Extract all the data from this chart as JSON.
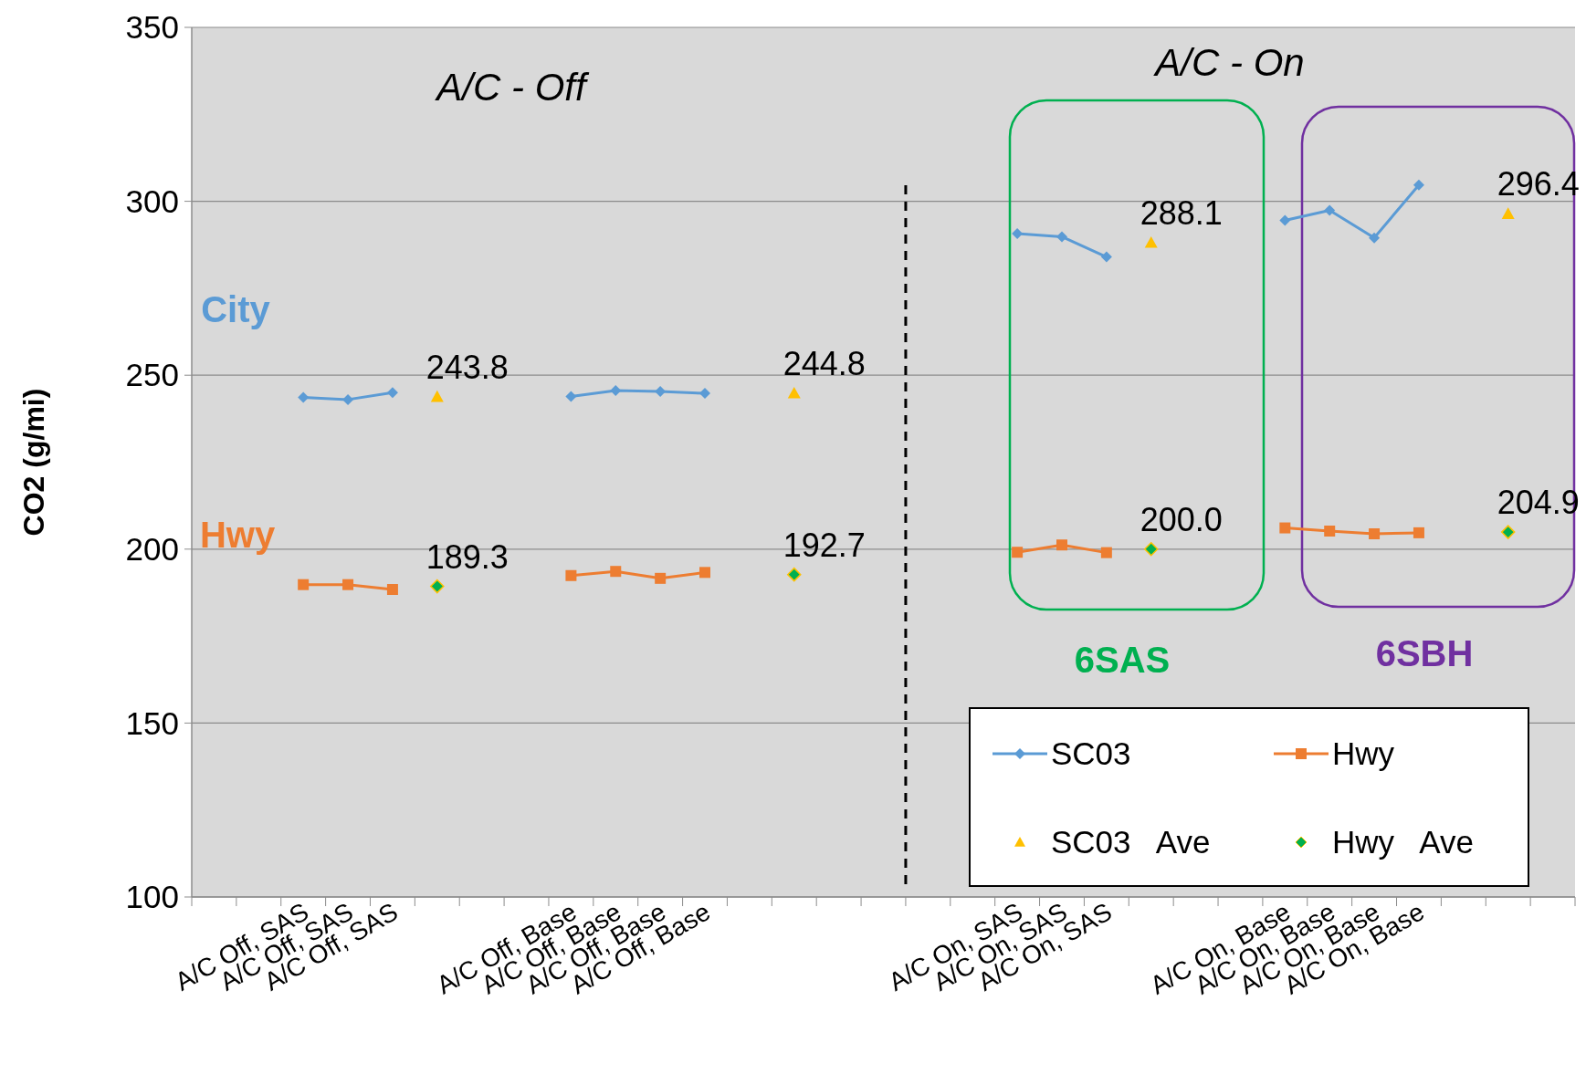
{
  "chart_data": {
    "type": "line",
    "ylabel": "CO2 (g/mi)",
    "categories": [
      null,
      null,
      "A/C Off, SAS",
      "A/C Off, SAS",
      "A/C Off, SAS",
      null,
      null,
      null,
      "A/C Off, Base",
      "A/C Off, Base",
      "A/C Off, Base",
      "A/C Off, Base",
      null,
      null,
      null,
      null,
      null,
      null,
      "A/C On, SAS",
      "A/C On, SAS",
      "A/C On, SAS",
      null,
      null,
      null,
      "A/C On, Base",
      "A/C On, Base",
      "A/C On, Base",
      "A/C On, Base",
      null,
      null,
      null
    ],
    "series": [
      {
        "name": "SC03",
        "color": "#5b9bd5",
        "marker": "diamond",
        "values": [
          null,
          null,
          243.6,
          243.0,
          245.0,
          null,
          null,
          null,
          243.9,
          245.6,
          245.3,
          244.8,
          null,
          null,
          null,
          null,
          null,
          null,
          290.7,
          289.8,
          284.0,
          null,
          null,
          null,
          294.5,
          297.4,
          289.5,
          304.7,
          null,
          null,
          null
        ]
      },
      {
        "name": "Hwy",
        "color": "#ed7d31",
        "marker": "square",
        "values": [
          null,
          null,
          189.8,
          189.8,
          188.4,
          null,
          null,
          null,
          192.4,
          193.6,
          191.6,
          193.3,
          null,
          null,
          null,
          null,
          null,
          null,
          199.1,
          201.2,
          199.0,
          null,
          null,
          null,
          206.1,
          205.2,
          204.4,
          204.7,
          null,
          null,
          null
        ]
      },
      {
        "name": "SC03   Ave",
        "type": "scatter",
        "color": "#ffc000",
        "marker": "triangle",
        "values": [
          null,
          null,
          null,
          null,
          null,
          243.8,
          null,
          null,
          null,
          null,
          null,
          null,
          null,
          244.8,
          null,
          null,
          null,
          null,
          null,
          null,
          null,
          288.1,
          null,
          null,
          null,
          null,
          null,
          null,
          null,
          296.4,
          null
        ],
        "value_labels": [
          null,
          null,
          null,
          null,
          null,
          "243.8",
          null,
          null,
          null,
          null,
          null,
          null,
          null,
          "244.8",
          null,
          null,
          null,
          null,
          null,
          null,
          null,
          "288.1",
          null,
          null,
          null,
          null,
          null,
          null,
          null,
          "296.4",
          null
        ]
      },
      {
        "name": "Hwy   Ave",
        "type": "scatter",
        "color": "#00b050",
        "marker": "diamond",
        "values": [
          null,
          null,
          null,
          null,
          null,
          189.3,
          null,
          null,
          null,
          null,
          null,
          null,
          null,
          192.7,
          null,
          null,
          null,
          null,
          null,
          null,
          null,
          200.0,
          null,
          null,
          null,
          null,
          null,
          null,
          null,
          204.9,
          null
        ],
        "value_labels": [
          null,
          null,
          null,
          null,
          null,
          "189.3",
          null,
          null,
          null,
          null,
          null,
          null,
          null,
          "192.7",
          null,
          null,
          null,
          null,
          null,
          null,
          null,
          "200.0",
          null,
          null,
          null,
          null,
          null,
          null,
          null,
          "204.9",
          null
        ]
      }
    ],
    "ylim": [
      100,
      350
    ],
    "yticks": [
      100,
      150,
      200,
      250,
      300,
      350
    ],
    "grid": "y",
    "legend": "bottom right",
    "annotations": [
      "A/C - Off",
      "A/C - On",
      "City",
      "Hwy",
      "6SAS",
      "6SBH"
    ]
  }
}
